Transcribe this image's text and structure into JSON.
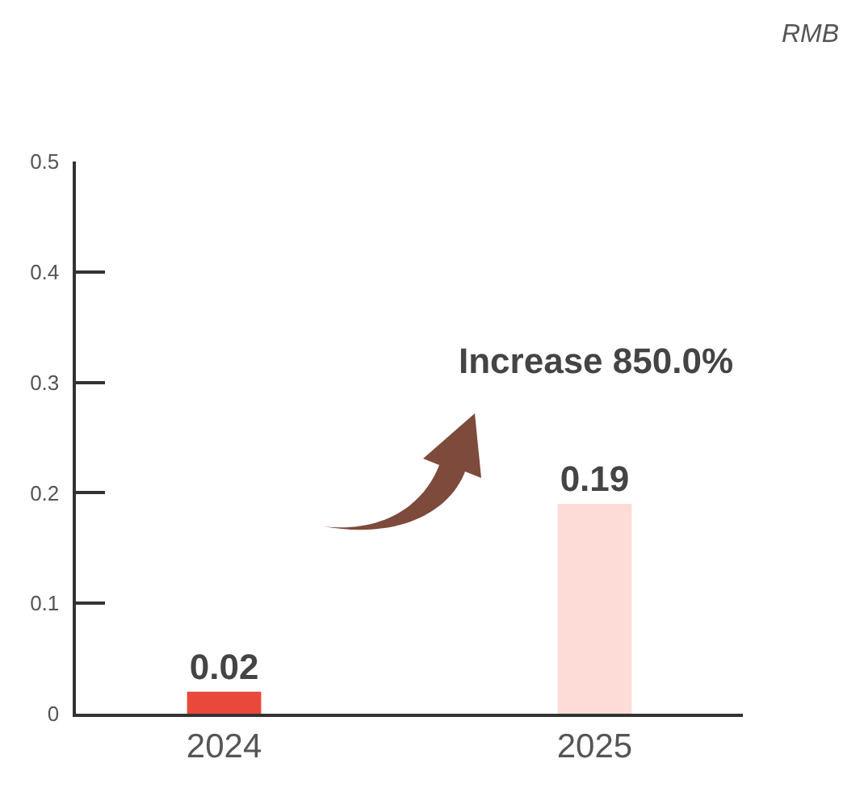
{
  "chart_data": {
    "type": "bar",
    "categories": [
      "2024",
      "2025"
    ],
    "values": [
      0.02,
      0.19
    ],
    "colors": [
      "#e8493a",
      "#fddbd6"
    ],
    "ylim": [
      0,
      0.5
    ],
    "yticks": [
      0,
      0.1,
      0.2,
      0.3,
      0.4,
      0.5
    ],
    "grid": false,
    "data_labels": true,
    "annotations": [
      "RMB",
      "Increase 850.0%"
    ]
  }
}
